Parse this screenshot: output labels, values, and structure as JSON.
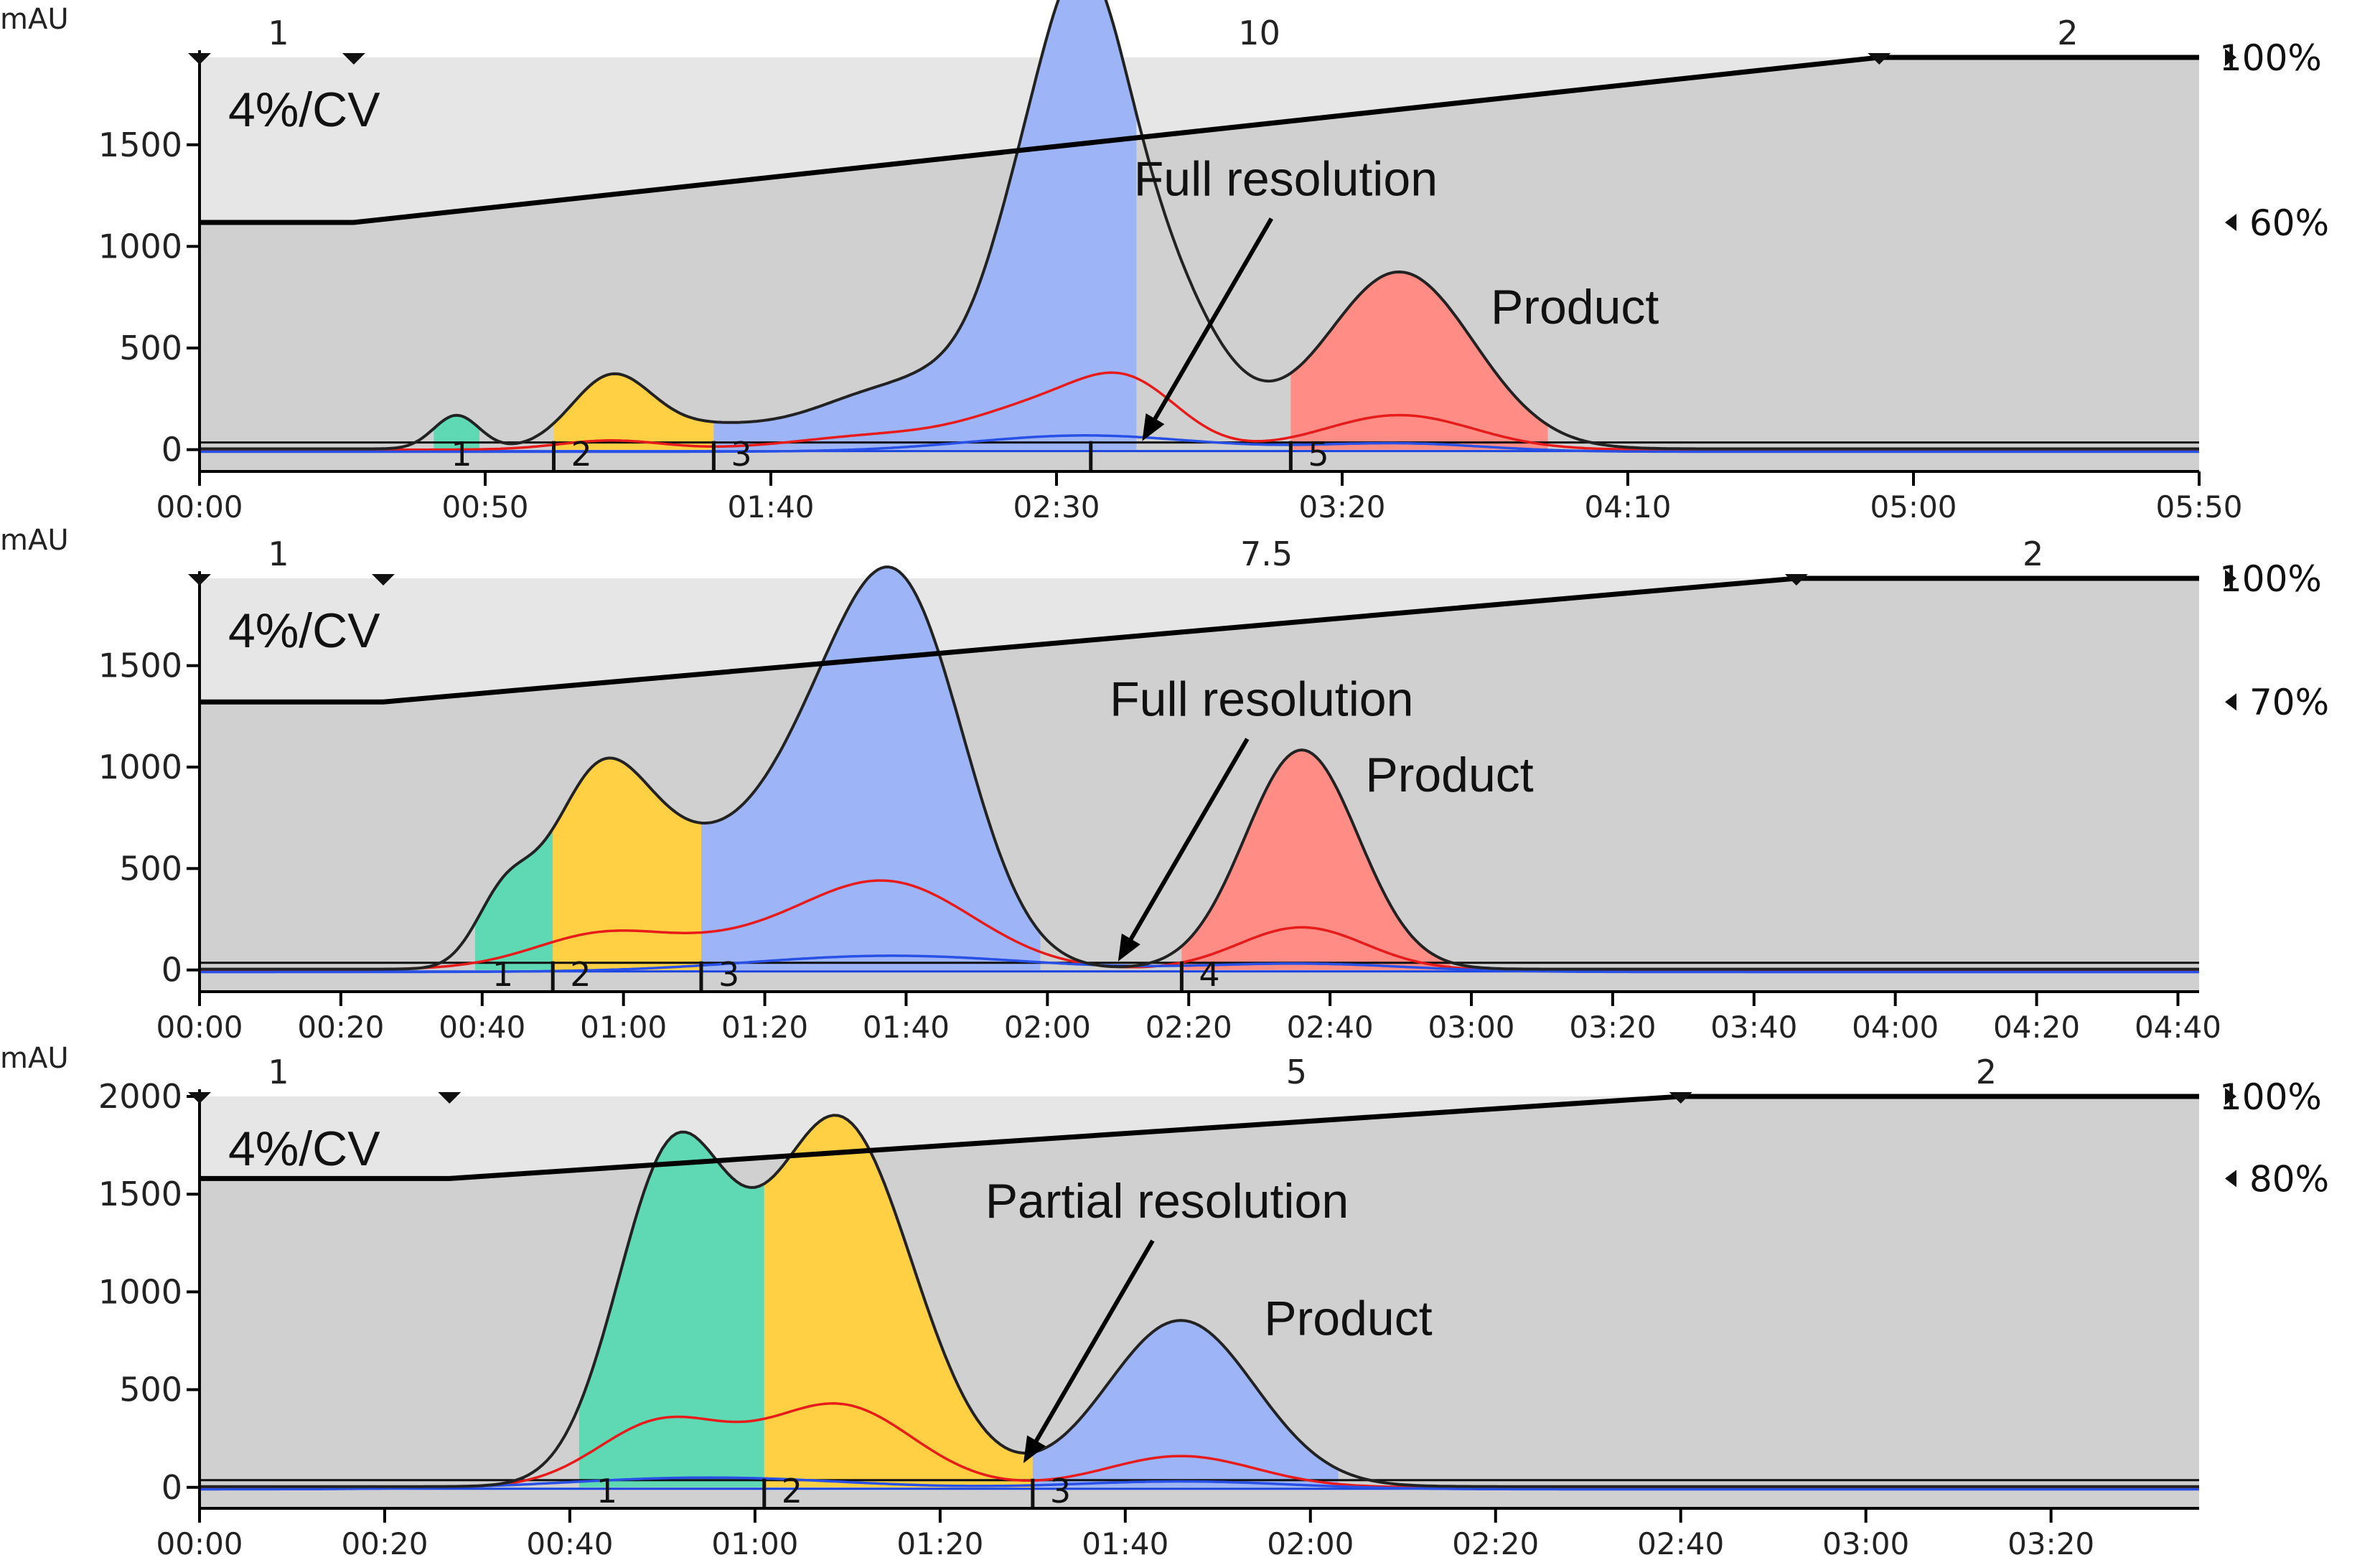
{
  "chart_data": [
    {
      "type": "area",
      "xlabel": "",
      "ylabel": "mAU",
      "x_ticks": [
        "00:00",
        "00:50",
        "01:40",
        "02:30",
        "03:20",
        "04:10",
        "05:00",
        "05:50"
      ],
      "x_range_s": [
        0,
        350
      ],
      "y_ticks": [
        0,
        500,
        1000,
        1500
      ],
      "y_range": [
        -100,
        1930
      ],
      "gradient_labels": {
        "top_left": "1",
        "top_mid": "10",
        "top_right": "2",
        "pct_top": "100%",
        "pct_mid": "60%"
      },
      "gradient_start_pct": 60,
      "gradient_points": [
        [
          0,
          60
        ],
        [
          27,
          60
        ],
        [
          294,
          100
        ],
        [
          350,
          100
        ]
      ],
      "gradient_title": "4%/CV",
      "peaks": [
        [
          45,
          165,
          4
        ],
        [
          72,
          340,
          7
        ],
        [
          88,
          100,
          10
        ],
        [
          108,
          110,
          10
        ],
        [
          120,
          190,
          9
        ],
        [
          133,
          270,
          8
        ],
        [
          142,
          310,
          6
        ],
        [
          149,
          680,
          8
        ],
        [
          155,
          940,
          7
        ],
        [
          163,
          1120,
          12
        ],
        [
          210,
          870,
          13
        ]
      ],
      "red_peaks": [
        [
          72,
          45,
          9
        ],
        [
          120,
          70,
          15
        ],
        [
          148,
          200,
          12
        ],
        [
          163,
          270,
          9
        ],
        [
          210,
          170,
          13
        ]
      ],
      "blue_peaks": [
        [
          155,
          80,
          20
        ],
        [
          210,
          40,
          15
        ]
      ],
      "fractions": [
        {
          "label": "1",
          "start": 41,
          "end": 49,
          "color": "#5ed9b4"
        },
        {
          "label": "2",
          "start": 62,
          "end": 90,
          "color": "#ffd043"
        },
        {
          "label": "3",
          "start": 90,
          "end": 164,
          "color": "#9db5f6"
        },
        {
          "label": "5",
          "start": 191,
          "end": 236,
          "color": "#ff8c85"
        }
      ],
      "fraction_divider_lines": [
        62,
        90,
        156,
        191
      ],
      "annotations": [
        {
          "text": "Full resolution",
          "x": 165,
          "y": 0,
          "arrow": true
        },
        {
          "text": "Product",
          "x": 226,
          "y": 620,
          "arrow": false
        }
      ]
    },
    {
      "type": "area",
      "xlabel": "",
      "ylabel": "mAU",
      "x_ticks": [
        "00:00",
        "00:20",
        "00:40",
        "01:00",
        "01:20",
        "01:40",
        "02:00",
        "02:20",
        "02:40",
        "03:00",
        "03:20",
        "03:40",
        "04:00",
        "04:20",
        "04:40"
      ],
      "x_range_s": [
        0,
        283
      ],
      "y_ticks": [
        0,
        500,
        1000,
        1500
      ],
      "y_range": [
        -100,
        1930
      ],
      "gradient_labels": {
        "top_left": "1",
        "top_mid": "7.5",
        "top_right": "2",
        "pct_top": "100%",
        "pct_mid": "70%"
      },
      "gradient_start_pct": 70,
      "gradient_points": [
        [
          0,
          70
        ],
        [
          26,
          70
        ],
        [
          226,
          100
        ],
        [
          283,
          100
        ]
      ],
      "gradient_title": "4%/CV",
      "peaks": [
        [
          43,
          300,
          4
        ],
        [
          56,
          790,
          7
        ],
        [
          66,
          380,
          9
        ],
        [
          75,
          240,
          8
        ],
        [
          83,
          270,
          7
        ],
        [
          90,
          540,
          8
        ],
        [
          100,
          1660,
          9
        ],
        [
          156,
          1080,
          8
        ]
      ],
      "red_peaks": [
        [
          56,
          110,
          9
        ],
        [
          75,
          130,
          18
        ],
        [
          98,
          380,
          12
        ],
        [
          156,
          210,
          9
        ]
      ],
      "blue_peaks": [
        [
          98,
          80,
          20
        ],
        [
          156,
          40,
          15
        ]
      ],
      "fractions": [
        {
          "label": "1",
          "start": 39,
          "end": 50,
          "color": "#5ed9b4"
        },
        {
          "label": "2",
          "start": 50,
          "end": 71,
          "color": "#ffd043"
        },
        {
          "label": "3",
          "start": 71,
          "end": 119,
          "color": "#9db5f6"
        },
        {
          "label": "4",
          "start": 139,
          "end": 177,
          "color": "#ff8c85"
        }
      ],
      "fraction_divider_lines": [
        50,
        71,
        139
      ],
      "annotations": [
        {
          "text": "Full resolution",
          "x": 130,
          "y": 0,
          "arrow": true
        },
        {
          "text": "Product",
          "x": 165,
          "y": 880,
          "arrow": false
        }
      ]
    },
    {
      "type": "area",
      "xlabel": "",
      "ylabel": "mAU",
      "x_ticks": [
        "00:00",
        "00:20",
        "00:40",
        "01:00",
        "01:20",
        "01:40",
        "02:00",
        "02:20",
        "02:40",
        "03:00",
        "03:20"
      ],
      "x_range_s": [
        0,
        216
      ],
      "y_ticks": [
        0,
        500,
        1000,
        1500,
        2000
      ],
      "y_range": [
        -100,
        2000
      ],
      "gradient_labels": {
        "top_left": "1",
        "top_mid": "5",
        "top_right": "2",
        "pct_top": "100%",
        "pct_mid": "80%"
      },
      "gradient_start_pct": 80,
      "gradient_points": [
        [
          0,
          80
        ],
        [
          27,
          80
        ],
        [
          160,
          100
        ],
        [
          216,
          100
        ]
      ],
      "gradient_title": "4%/CV",
      "peaks": [
        [
          51,
          1640,
          6
        ],
        [
          69,
          1880,
          8
        ],
        [
          106,
          850,
          8
        ]
      ],
      "red_peaks": [
        [
          50,
          330,
          7
        ],
        [
          69,
          420,
          8
        ],
        [
          106,
          160,
          8
        ]
      ],
      "blue_peaks": [
        [
          55,
          60,
          15
        ],
        [
          106,
          40,
          12
        ]
      ],
      "fractions": [
        {
          "label": "1",
          "start": 41,
          "end": 61,
          "color": "#5ed9b4"
        },
        {
          "label": "2",
          "start": 61,
          "end": 90,
          "color": "#ffd043"
        },
        {
          "label": "3",
          "start": 90,
          "end": 123,
          "color": "#9db5f6"
        }
      ],
      "fraction_divider_lines": [
        61,
        90
      ],
      "annotations": [
        {
          "text": "Partial resolution",
          "x": 89,
          "y": 80,
          "arrow": true
        },
        {
          "text": "Product",
          "x": 115,
          "y": 780,
          "arrow": false
        }
      ]
    }
  ]
}
